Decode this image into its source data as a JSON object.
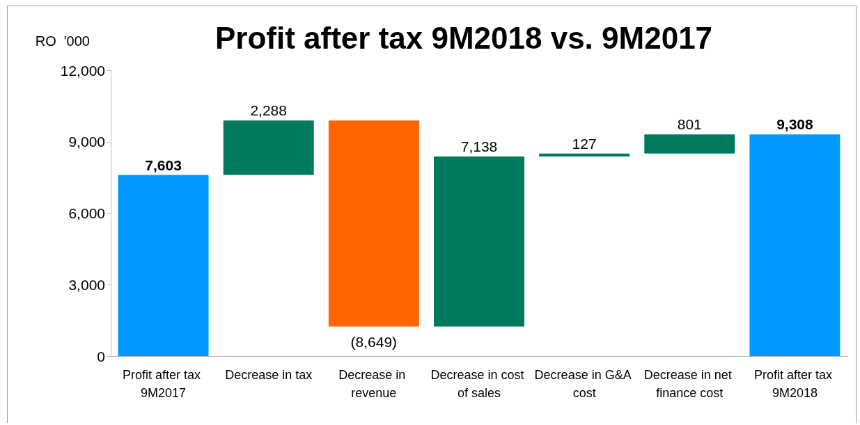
{
  "chart_data": {
    "type": "bar",
    "title": "Profit after tax 9M2018 vs. 9M2017",
    "ylabel": "RO  '000",
    "categories": [
      "Profit after tax 9M2017",
      "Decrease in tax",
      "Decrease in revenue",
      "Decrease in cost of sales",
      "Decrease in G&A cost",
      "Decrease in net finance cost",
      "Profit after tax 9M2018"
    ],
    "values": [
      7603,
      2288,
      -8649,
      7138,
      127,
      801,
      9308
    ],
    "base": [
      0,
      7603,
      9891,
      1242,
      8380,
      8507,
      0
    ],
    "colors": [
      "#0099ff",
      "#007a5e",
      "#ff6600",
      "#007a5e",
      "#007a5e",
      "#007a5e",
      "#0099ff"
    ],
    "value_labels": [
      "7,603",
      "2,288",
      "(8,649)",
      "7,138",
      "127",
      "801",
      "9,308"
    ],
    "ylim": [
      0,
      12000
    ],
    "yticks": [
      {
        "value": 0,
        "label": "0"
      },
      {
        "value": 3000,
        "label": "3,000"
      },
      {
        "value": 6000,
        "label": "6,000"
      },
      {
        "value": 9000,
        "label": "9,000"
      },
      {
        "value": 12000,
        "label": "12,000"
      }
    ],
    "grid": false
  }
}
